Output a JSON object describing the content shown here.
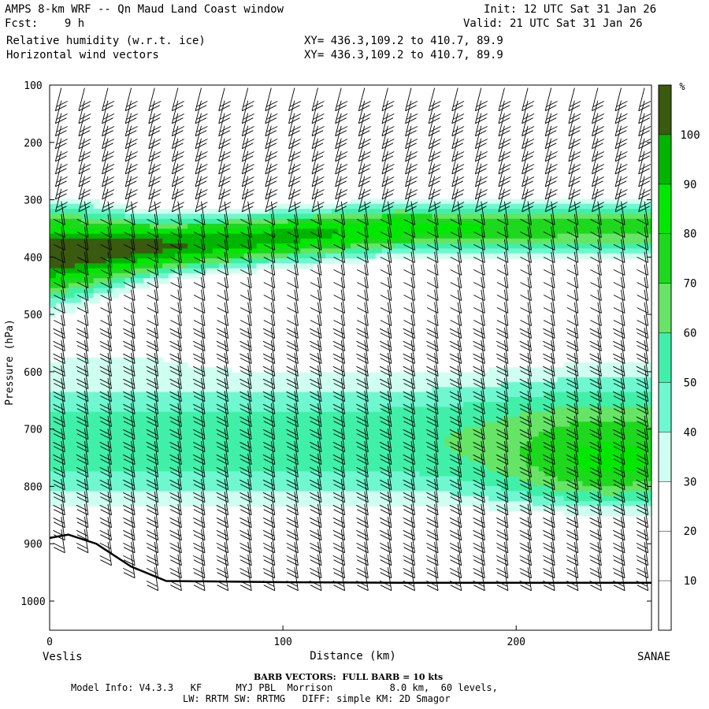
{
  "header": {
    "title": "AMPS 8-km WRF -- Qn Maud Land Coast window",
    "fcst": "Fcst:    9 h",
    "field1": "Relative humidity (w.r.t. ice)",
    "field2": "Horizontal wind vectors",
    "init": "Init: 12 UTC Sat 31 Jan 26",
    "valid": "Valid: 21 UTC Sat 31 Jan 26",
    "xy1": "XY= 436.3,109.2 to 410.7, 89.9",
    "xy2": "XY= 436.3,109.2 to 410.7, 89.9"
  },
  "footer": {
    "barb_note": "BARB VECTORS:  FULL BARB = 10 kts",
    "model_line1": "Model Info: V4.3.3   KF      MYJ PBL  Morrison          8.0 km,  60 levels,",
    "model_line2": "LW: RRTM SW: RRTMG   DIFF: simple KM: 2D Smagor",
    "left_endpoint": "Veslis",
    "right_endpoint": "SANAE"
  },
  "chart_data": {
    "type": "heatmap",
    "title": "Relative humidity (w.r.t. ice) cross section",
    "xlabel": "Distance (km)",
    "ylabel": "Pressure (hPa)",
    "xlim": [
      0,
      258
    ],
    "ylim": [
      1050,
      100
    ],
    "x_ticks": [
      0,
      100,
      200
    ],
    "y_ticks": [
      100,
      200,
      300,
      400,
      500,
      600,
      700,
      800,
      900,
      1000
    ],
    "colorbar": {
      "unit": "%",
      "levels": [
        10,
        20,
        30,
        40,
        50,
        60,
        70,
        80,
        90,
        100
      ],
      "colors": [
        "#ffffff",
        "#ffffff",
        "#ffffff",
        "#cfffea",
        "#7ff7d2",
        "#3ff0b2",
        "#5ee85e",
        "#2fdc2f",
        "#00ff00",
        "#00c000",
        "#007000",
        "#405010"
      ]
    },
    "terrain_profile": {
      "x": [
        0,
        8,
        20,
        35,
        50,
        100,
        150,
        200,
        258
      ],
      "p": [
        890,
        884,
        900,
        940,
        965,
        967,
        968,
        968,
        968
      ]
    },
    "wind_barbs": "Horizontal wind vectors shown as barbs every ~10 km; full barb = 10 kts"
  }
}
